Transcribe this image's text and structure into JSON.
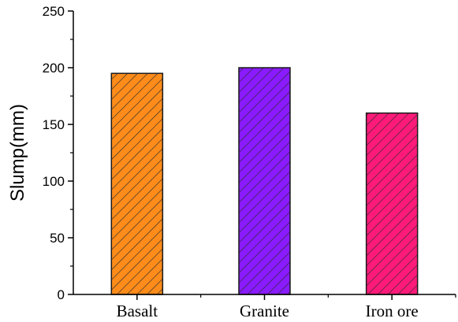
{
  "chart_data": {
    "type": "bar",
    "title": "",
    "xlabel": "",
    "ylabel": "Slump(mm)",
    "categories": [
      "Basalt",
      "Granite",
      "Iron ore"
    ],
    "values": [
      195,
      200,
      160
    ],
    "ylim": [
      0,
      250
    ],
    "yticks": [
      "0",
      "50",
      "100",
      "150",
      "200",
      "250"
    ],
    "colors": [
      "#ff8c1a",
      "#8a1aff",
      "#ff1a7a"
    ],
    "pattern": "diagonal-hatch",
    "grid": false,
    "legend": "none"
  }
}
